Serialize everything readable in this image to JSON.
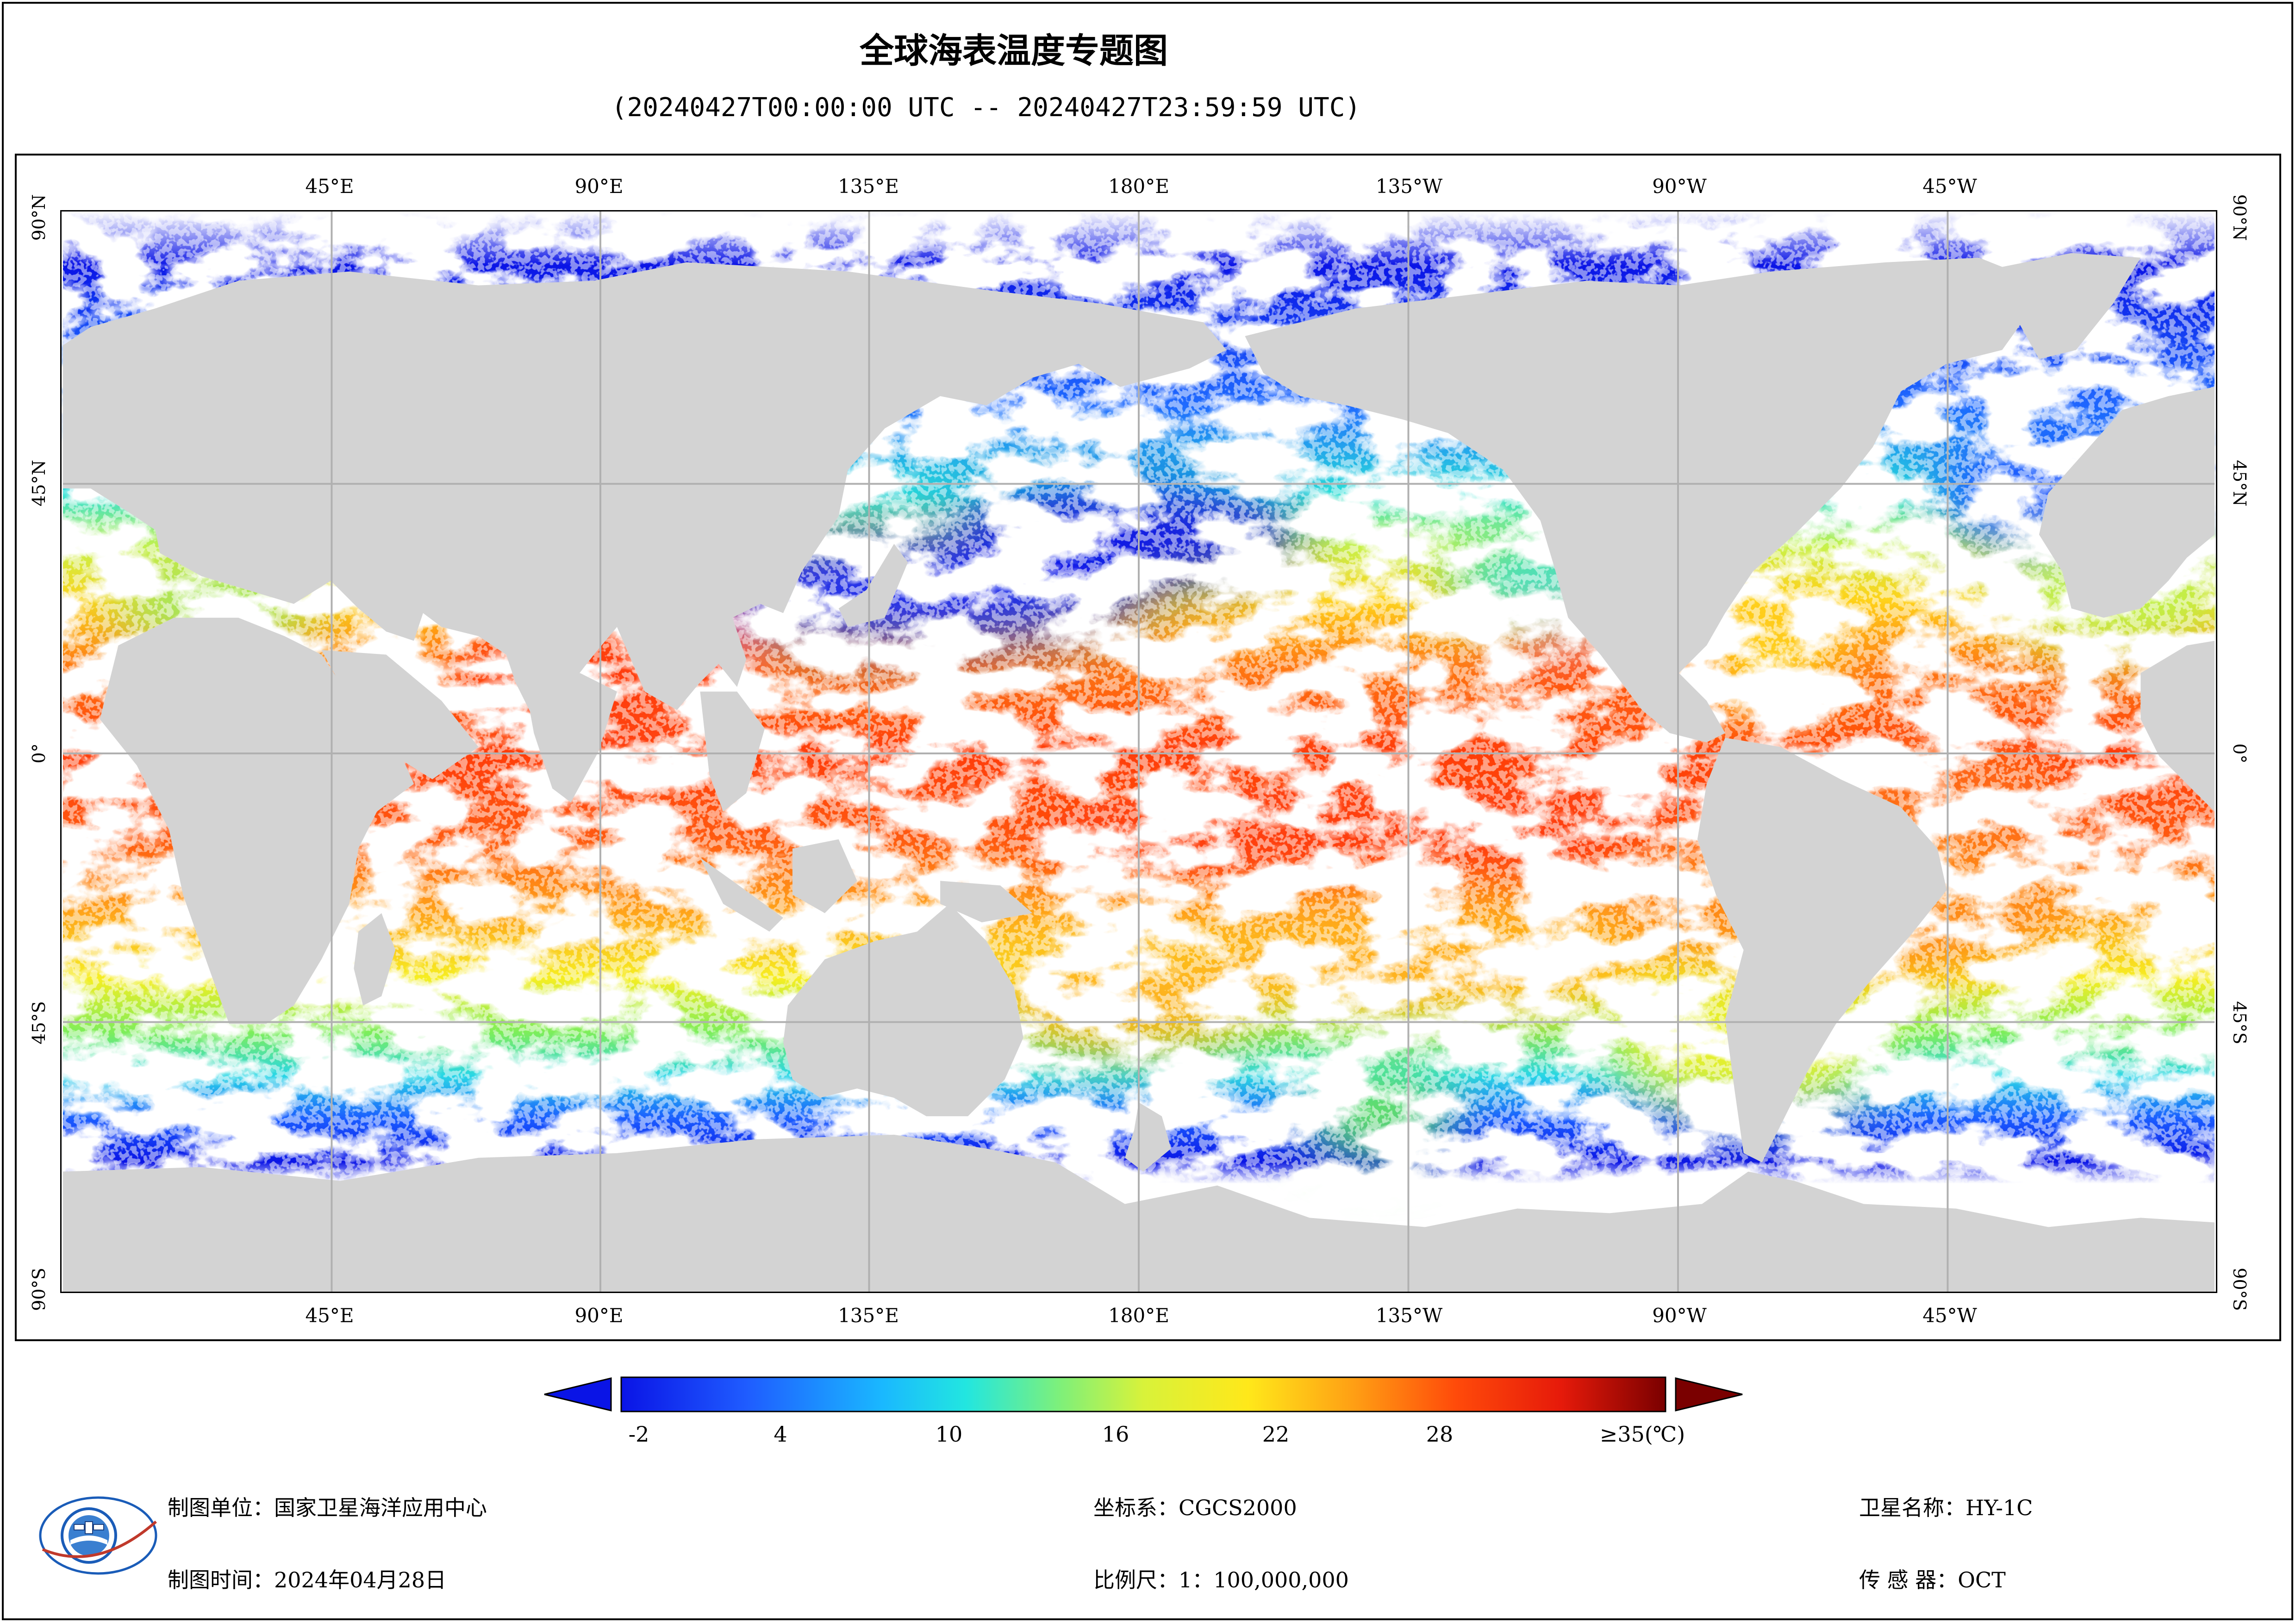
{
  "title": "全球海表温度专题图",
  "subtitle": "(20240427T00:00:00 UTC -- 20240427T23:59:59 UTC)",
  "map": {
    "lon_labels": [
      "45°E",
      "90°E",
      "135°E",
      "180°E",
      "135°W",
      "90°W",
      "45°W"
    ],
    "lat_labels": [
      "90°N",
      "45°N",
      "0°",
      "45°S",
      "90°S"
    ],
    "colors": {
      "land": "#d3d3d3",
      "cloud": "#ffffff",
      "grid": "#b0b0b0"
    }
  },
  "colorbar": {
    "ticks": [
      "-2",
      "4",
      "10",
      "16",
      "22",
      "28",
      "≥35(℃)"
    ],
    "min": -2,
    "max": 35,
    "under_color": "#0a14e6",
    "over_color": "#7a0000"
  },
  "info": {
    "unit": "制图单位：国家卫星海洋应用中心",
    "time": "制图时间：2024年04月28日",
    "crs": "坐标系：CGCS2000",
    "scale": "比例尺：1：100,000,000",
    "satellite": "卫星名称：HY-1C",
    "sensor": "传 感 器：OCT"
  },
  "logo": {
    "icon": "satellite-ocean-logo-icon"
  }
}
